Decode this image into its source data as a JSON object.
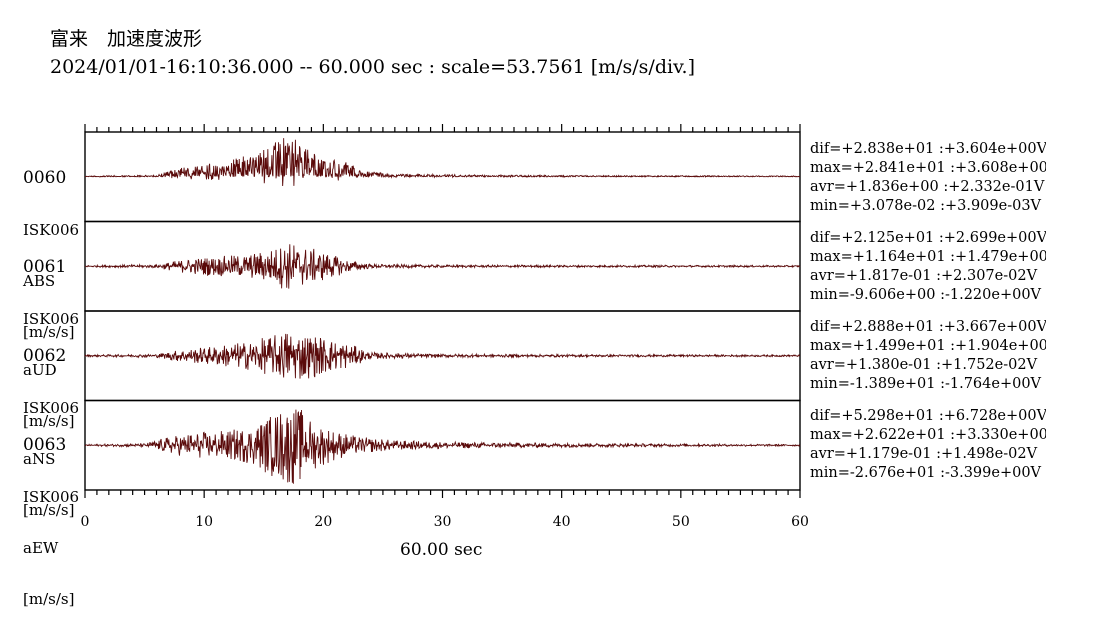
{
  "header": {
    "title": "富来　加速度波形",
    "subtitle": "2024/01/01-16:10:36.000 -- 60.000 sec : scale=53.7561 [m/s/s/div.]"
  },
  "colors": {
    "trace": "#5a0a0a",
    "frame": "#000000"
  },
  "chart_data": {
    "type": "line",
    "xlabel": "60.00 sec",
    "xlim": [
      0,
      60
    ],
    "x_ticks": [
      "0",
      "10",
      "20",
      "30",
      "40",
      "50",
      "60"
    ],
    "channels": [
      {
        "id": "0060",
        "station": "ISK006",
        "component": "ABS",
        "unit": "[m/s/s]",
        "stats": {
          "dif": "dif=+2.838e+01 :+3.604e+00V",
          "max": "max=+2.841e+01 :+3.608e+00V",
          "avr": "avr=+1.836e+00 :+2.332e-01V",
          "min": "min=+3.078e-02 :+3.909e-03V"
        },
        "envelope": [
          [
            0,
            0.02
          ],
          [
            6,
            0.04
          ],
          [
            8,
            0.2
          ],
          [
            10,
            0.28
          ],
          [
            12,
            0.35
          ],
          [
            14,
            0.55
          ],
          [
            15,
            0.6
          ],
          [
            16,
            0.8
          ],
          [
            17,
            0.95
          ],
          [
            18,
            0.85
          ],
          [
            19,
            0.55
          ],
          [
            20,
            0.4
          ],
          [
            22,
            0.35
          ],
          [
            23,
            0.15
          ],
          [
            26,
            0.06
          ],
          [
            30,
            0.05
          ],
          [
            40,
            0.03
          ],
          [
            60,
            0.02
          ]
        ],
        "max": 28.41,
        "min": 0.03078,
        "one_sided": true
      },
      {
        "id": "0061",
        "station": "ISK006",
        "component": "aUD",
        "unit": "[m/s/s]",
        "stats": {
          "dif": "dif=+2.125e+01 :+2.699e+00V",
          "max": "max=+1.164e+01 :+1.479e+00V",
          "avr": "avr=+1.817e-01 :+2.307e-02V",
          "min": "min=-9.606e+00 :-1.220e+00V"
        },
        "envelope": [
          [
            0,
            0.02
          ],
          [
            6,
            0.04
          ],
          [
            8,
            0.15
          ],
          [
            10,
            0.22
          ],
          [
            12,
            0.25
          ],
          [
            14,
            0.3
          ],
          [
            16,
            0.45
          ],
          [
            17,
            0.6
          ],
          [
            18,
            0.5
          ],
          [
            20,
            0.35
          ],
          [
            22,
            0.15
          ],
          [
            24,
            0.05
          ],
          [
            30,
            0.03
          ],
          [
            60,
            0.02
          ]
        ],
        "max": 11.64,
        "min": -9.606
      },
      {
        "id": "0062",
        "station": "ISK006",
        "component": "aNS",
        "unit": "[m/s/s]",
        "stats": {
          "dif": "dif=+2.888e+01 :+3.667e+00V",
          "max": "max=+1.499e+01 :+1.904e+00V",
          "avr": "avr=+1.380e-01 :+1.752e-02V",
          "min": "min=-1.389e+01 :-1.764e+00V"
        },
        "envelope": [
          [
            0,
            0.02
          ],
          [
            6,
            0.04
          ],
          [
            8,
            0.15
          ],
          [
            10,
            0.2
          ],
          [
            12,
            0.28
          ],
          [
            14,
            0.35
          ],
          [
            16,
            0.5
          ],
          [
            17,
            0.65
          ],
          [
            18,
            0.6
          ],
          [
            20,
            0.45
          ],
          [
            22,
            0.3
          ],
          [
            24,
            0.08
          ],
          [
            30,
            0.04
          ],
          [
            40,
            0.03
          ],
          [
            60,
            0.02
          ]
        ],
        "max": 14.99,
        "min": -13.89
      },
      {
        "id": "0063",
        "station": "ISK006",
        "component": "aEW",
        "unit": "[m/s/s]",
        "stats": {
          "dif": "dif=+5.298e+01 :+6.728e+00V",
          "max": "max=+2.622e+01 :+3.330e+00V",
          "avr": "avr=+1.179e-01 :+1.498e-02V",
          "min": "min=-2.676e+01 :-3.399e+00V"
        },
        "envelope": [
          [
            0,
            0.02
          ],
          [
            5,
            0.04
          ],
          [
            7,
            0.2
          ],
          [
            9,
            0.3
          ],
          [
            12,
            0.35
          ],
          [
            14,
            0.45
          ],
          [
            16,
            0.8
          ],
          [
            17,
            0.95
          ],
          [
            18,
            0.9
          ],
          [
            19,
            0.6
          ],
          [
            21,
            0.35
          ],
          [
            23,
            0.2
          ],
          [
            26,
            0.12
          ],
          [
            30,
            0.08
          ],
          [
            36,
            0.06
          ],
          [
            45,
            0.04
          ],
          [
            60,
            0.02
          ]
        ],
        "max": 26.22,
        "min": -26.76
      }
    ]
  }
}
